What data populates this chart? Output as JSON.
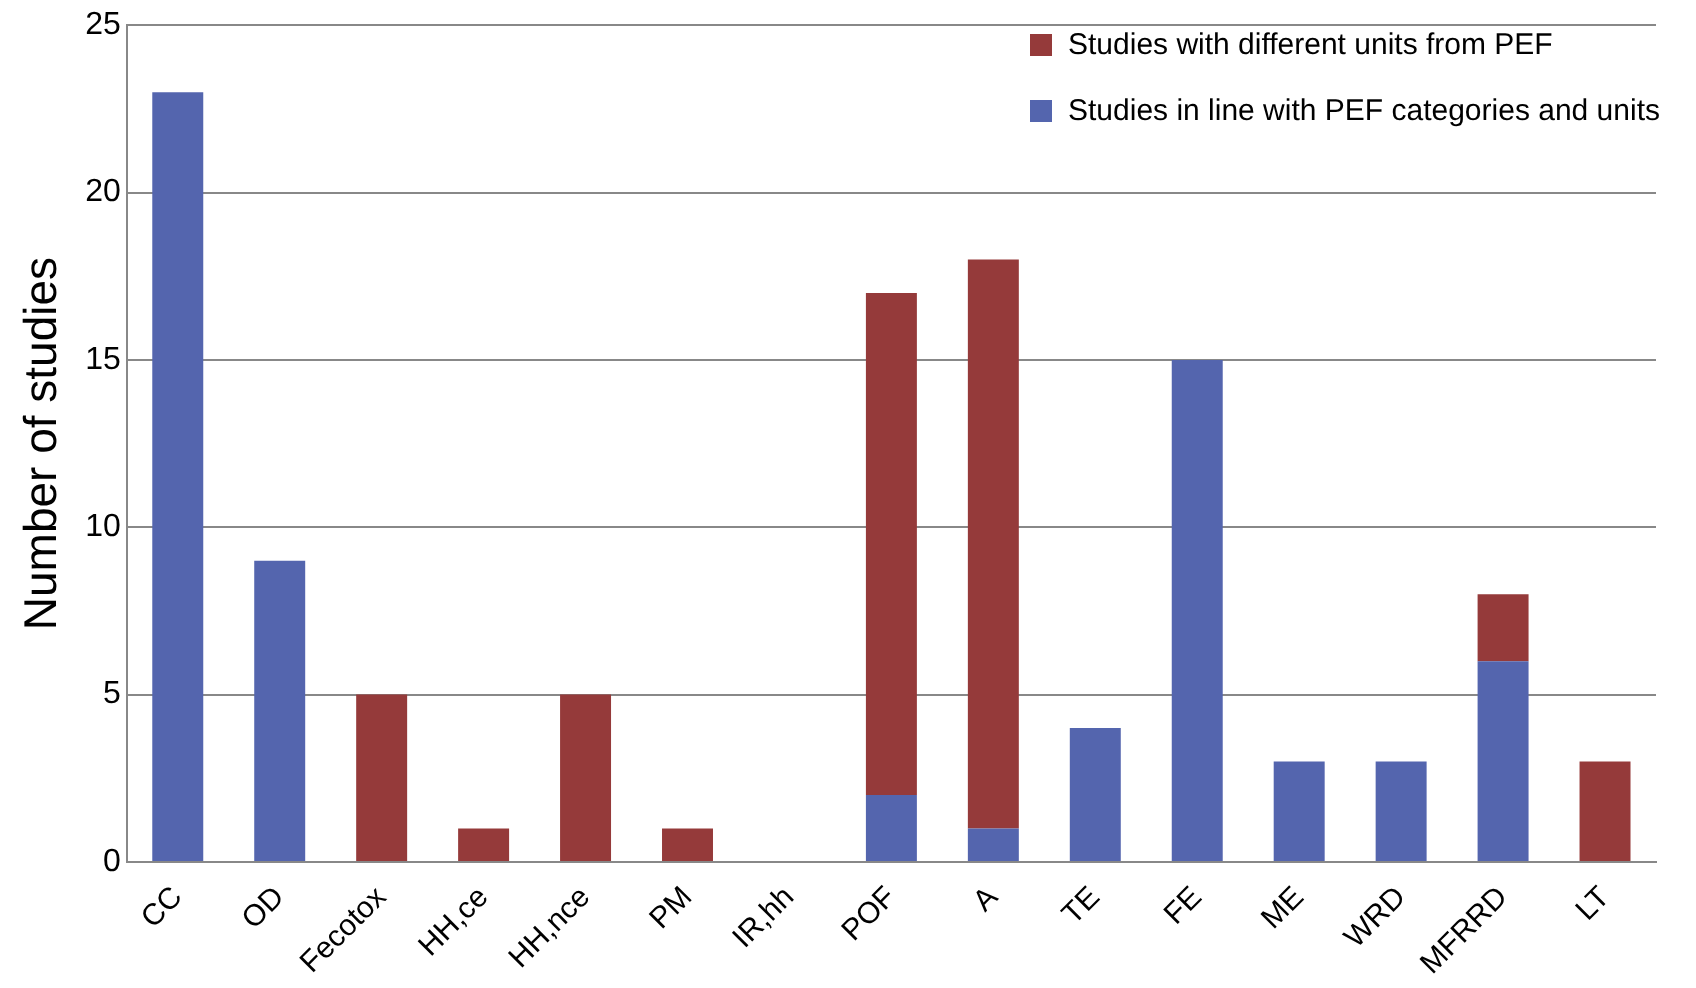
{
  "chart_data": {
    "type": "bar",
    "ylabel": "Number of studies",
    "categories": [
      "CC",
      "OD",
      "Fecotox",
      "HH,ce",
      "HH,nce",
      "PM",
      "IR,hh",
      "POF",
      "A",
      "TE",
      "FE",
      "ME",
      "WRD",
      "MFRRD",
      "LT"
    ],
    "stacked": true,
    "ylim": [
      0,
      25
    ],
    "yticks": [
      0,
      5,
      10,
      15,
      20,
      25
    ],
    "grid": "y",
    "legend": "top right",
    "series": [
      {
        "name": "Studies in line with PEF categories and units",
        "color": "#5465ae",
        "values": [
          23,
          9,
          0,
          0,
          0,
          0,
          0,
          2,
          1,
          4,
          15,
          3,
          3,
          6,
          0
        ]
      },
      {
        "name": "Studies with different units from PEF",
        "color": "#953a3a",
        "values": [
          0,
          0,
          5,
          1,
          5,
          1,
          0,
          15,
          17,
          0,
          0,
          0,
          0,
          2,
          3
        ]
      }
    ]
  }
}
